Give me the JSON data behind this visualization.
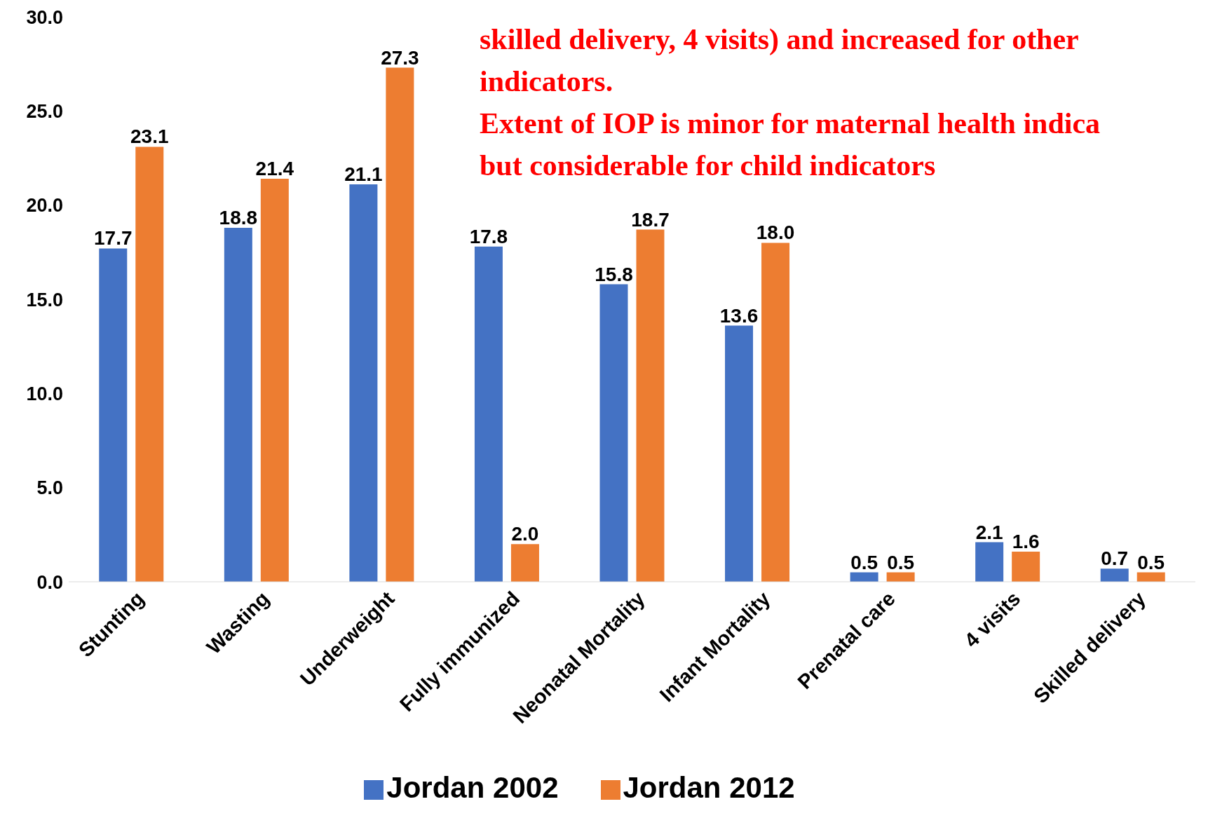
{
  "chart_data": {
    "type": "bar",
    "categories": [
      "Stunting",
      "Wasting",
      "Underweight",
      "Fully immunized",
      "Neonatal Mortality",
      "Infant Mortality",
      "Prenatal care",
      "4 visits",
      "Skilled delivery"
    ],
    "series": [
      {
        "name": "Jordan 2002",
        "color": "#4472c4",
        "values": [
          17.7,
          18.8,
          21.1,
          17.8,
          15.8,
          13.6,
          0.5,
          2.1,
          0.7
        ],
        "value_labels": [
          "17.7",
          "18.8",
          "21.1",
          "17.8",
          "15.8",
          "13.6",
          "0.5",
          "2.1",
          "0.7"
        ]
      },
      {
        "name": "Jordan 2012",
        "color": "#ed7d31",
        "values": [
          23.1,
          21.4,
          27.3,
          2.0,
          18.7,
          18.0,
          0.5,
          1.6,
          0.5
        ],
        "value_labels": [
          "23.1",
          "21.4",
          "27.3",
          "2.0",
          "18.7",
          "18.0",
          "0.5",
          "1.6",
          "0.5"
        ]
      }
    ],
    "ylim": [
      0,
      30
    ],
    "yticks": [
      {
        "value": 0,
        "label": "0.0"
      },
      {
        "value": 5,
        "label": "5.0"
      },
      {
        "value": 10,
        "label": "10.0"
      },
      {
        "value": 15,
        "label": "15.0"
      },
      {
        "value": 20,
        "label": "20.0"
      },
      {
        "value": 25,
        "label": "25.0"
      },
      {
        "value": 30,
        "label": "30.0"
      }
    ],
    "grid": false,
    "legend": "bottom",
    "annotations": [
      "skilled delivery, 4 visits) and increased for other indicators.",
      "Extent of IOP is minor for maternal health indica",
      "but considerable for child indicators"
    ]
  }
}
